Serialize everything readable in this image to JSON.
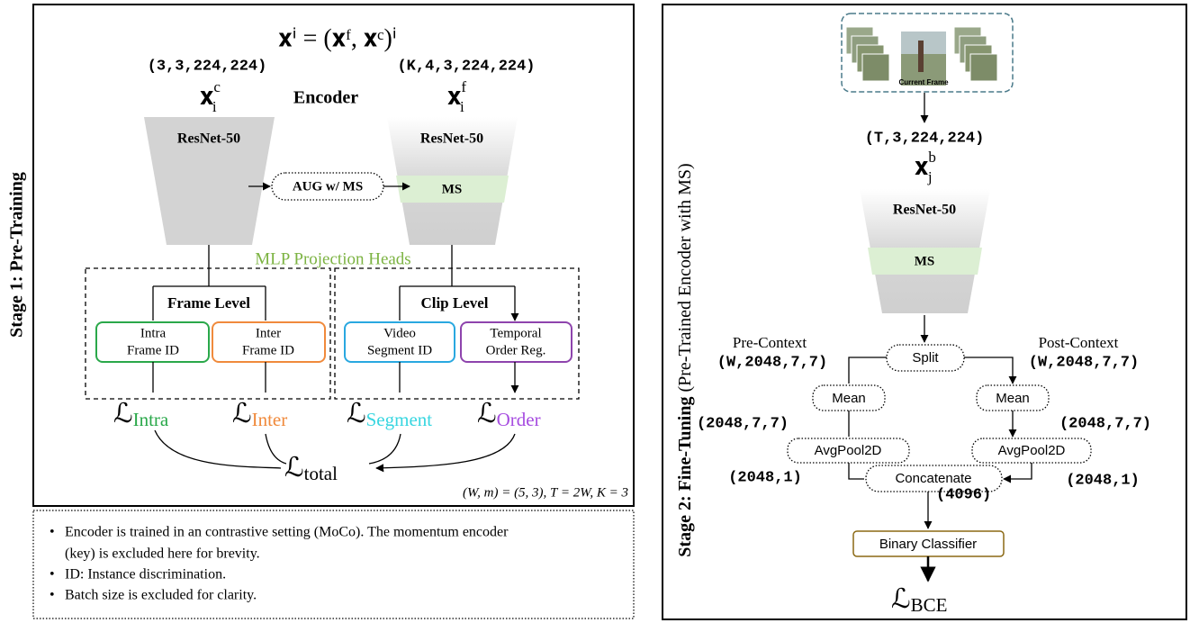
{
  "stage1": {
    "label": "Stage 1:  Pre-Training",
    "formula": "𝐱ⁱ = (𝐱ᶠ, 𝐱ᶜ)ⁱ",
    "shape_c": "(3,3,224,224)",
    "shape_f": "(K,4,3,224,224)",
    "input_c": {
      "base": "𝐱",
      "sup": "c",
      "sub": "i"
    },
    "input_f": {
      "base": "𝐱",
      "sup": "f",
      "sub": "i"
    },
    "encoder": "Encoder",
    "backbone_left": "ResNet-50",
    "backbone_right": "ResNet-50",
    "ms": "MS",
    "aug": "AUG w/ MS",
    "heads": "MLP Projection Heads",
    "frame_level": "Frame Level",
    "clip_level": "Clip Level",
    "tasks": [
      {
        "line1": "Intra",
        "line2": "Frame ID"
      },
      {
        "line1": "Inter",
        "line2": "Frame ID"
      },
      {
        "line1": "Video",
        "line2": "Segment ID"
      },
      {
        "line1": "Temporal",
        "line2": "Order Reg."
      }
    ],
    "losses": [
      {
        "base": "ℒ",
        "sub": "Intra"
      },
      {
        "base": "ℒ",
        "sub": "Inter"
      },
      {
        "base": "ℒ",
        "sub": "Segment"
      },
      {
        "base": "ℒ",
        "sub": "Order"
      }
    ],
    "total": {
      "base": "ℒ",
      "sub": "total"
    },
    "params": "(W, m) = (5, 3), T = 2W, K = 3"
  },
  "notes": [
    {
      "line1": "Encoder is trained in an contrastive setting (MoCo). The momentum encoder",
      "line2": "(key) is excluded here for brevity."
    },
    {
      "line1": "ID: Instance discrimination."
    },
    {
      "line1": "Batch size is excluded for clarity."
    }
  ],
  "stage2": {
    "label_bold": "Stage 2:  Fine-Tuning",
    "label_rest": "(Pre-Trained Encoder with MS)",
    "current_frame": "Current Frame",
    "shape_in": "(T,3,224,224)",
    "input": {
      "base": "𝐱",
      "sup": "b",
      "sub": "j"
    },
    "backbone": "ResNet-50",
    "ms": "MS",
    "pre_context": "Pre-Context",
    "pre_shape": "(W,2048,7,7)",
    "post_context": "Post-Context",
    "post_shape": "(W,2048,7,7)",
    "split": "Split",
    "mean_left": "Mean",
    "mean_right": "Mean",
    "mean_shape_left": "(2048,7,7)",
    "mean_shape_right": "(2048,7,7)",
    "pool_left": "AvgPool2D",
    "pool_right": "AvgPool2D",
    "pool_shape_left": "(2048,1)",
    "pool_shape_right": "(2048,1)",
    "concat": "Concatenate",
    "concat_shape": "(4096)",
    "classifier": "Binary Classifier",
    "loss": {
      "base": "ℒ",
      "sub": "BCE"
    }
  }
}
